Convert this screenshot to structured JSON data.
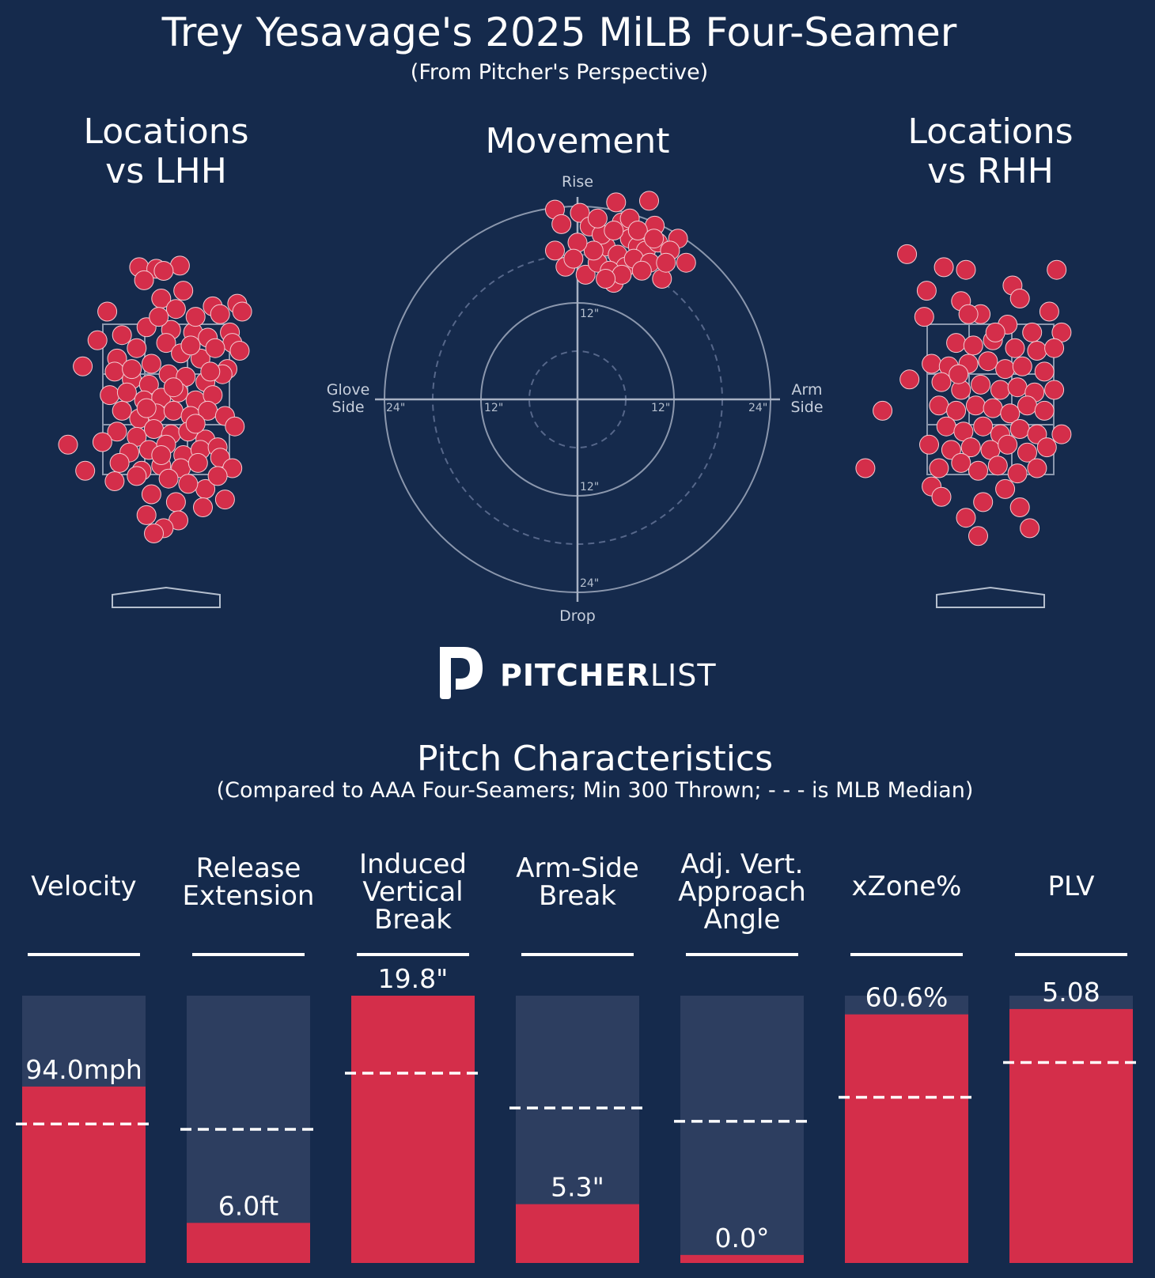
{
  "header": {
    "title": "Trey Yesavage's 2025 MiLB Four-Seamer",
    "subtitle": "(From Pitcher's Perspective)"
  },
  "panels": {
    "lhh_title": [
      "Locations",
      "vs LHH"
    ],
    "movement_title": "Movement",
    "rhh_title": [
      "Locations",
      "vs RHH"
    ]
  },
  "movement_axes": {
    "top": "Rise",
    "bottom": "Drop",
    "left": [
      "Glove",
      "Side"
    ],
    "right": [
      "Arm",
      "Side"
    ],
    "ticks": [
      "12\"",
      "24\""
    ]
  },
  "brand": {
    "bold": "PITCHER",
    "light": "LIST"
  },
  "characteristics": {
    "title": "Pitch Characteristics",
    "subtitle": "(Compared to AAA Four-Seamers; Min 300 Thrown; - - - is MLB Median)"
  },
  "colors": {
    "background": "#152a4c",
    "pitch_fill": "#d42e4a",
    "bar_track": "#2d3e60",
    "bar_fill": "#d42e4a",
    "median_line": "#ffffff"
  },
  "chart_data": [
    {
      "type": "scatter",
      "name": "Locations vs LHH",
      "x_range_ft": [
        -2.5,
        2.5
      ],
      "y_range_ft": [
        -0.5,
        5.5
      ],
      "points": [
        [
          -0.55,
          4.95
        ],
        [
          -0.2,
          4.92
        ],
        [
          0.28,
          4.98
        ],
        [
          -0.45,
          4.7
        ],
        [
          -0.05,
          4.88
        ],
        [
          0.35,
          4.5
        ],
        [
          -1.2,
          4.1
        ],
        [
          0.95,
          4.2
        ],
        [
          1.45,
          4.25
        ],
        [
          1.1,
          4.05
        ],
        [
          1.55,
          4.1
        ],
        [
          -1.4,
          3.55
        ],
        [
          -0.4,
          3.8
        ],
        [
          0.1,
          3.75
        ],
        [
          0.55,
          3.7
        ],
        [
          -0.9,
          3.65
        ],
        [
          0.85,
          3.6
        ],
        [
          1.3,
          3.7
        ],
        [
          -0.1,
          4.35
        ],
        [
          0.2,
          4.15
        ],
        [
          0.6,
          4.0
        ],
        [
          1.35,
          3.5
        ],
        [
          1.5,
          3.35
        ],
        [
          -1.0,
          3.2
        ],
        [
          -0.6,
          3.4
        ],
        [
          -0.3,
          3.1
        ],
        [
          0.0,
          3.5
        ],
        [
          0.3,
          3.3
        ],
        [
          0.7,
          3.2
        ],
        [
          1.0,
          3.4
        ],
        [
          1.25,
          3.0
        ],
        [
          -1.05,
          2.95
        ],
        [
          -0.7,
          2.8
        ],
        [
          -0.35,
          2.7
        ],
        [
          0.05,
          2.9
        ],
        [
          0.4,
          2.85
        ],
        [
          0.8,
          2.75
        ],
        [
          1.15,
          2.9
        ],
        [
          -1.15,
          2.5
        ],
        [
          -0.8,
          2.55
        ],
        [
          -0.45,
          2.4
        ],
        [
          -0.1,
          2.45
        ],
        [
          0.25,
          2.55
        ],
        [
          0.6,
          2.4
        ],
        [
          0.95,
          2.5
        ],
        [
          -0.9,
          2.2
        ],
        [
          -0.55,
          2.05
        ],
        [
          -0.2,
          2.15
        ],
        [
          0.15,
          2.2
        ],
        [
          0.5,
          2.1
        ],
        [
          0.85,
          2.2
        ],
        [
          1.2,
          2.1
        ],
        [
          -1.0,
          1.8
        ],
        [
          -0.6,
          1.7
        ],
        [
          -0.25,
          1.85
        ],
        [
          0.1,
          1.75
        ],
        [
          0.45,
          1.8
        ],
        [
          0.8,
          1.65
        ],
        [
          1.4,
          1.9
        ],
        [
          -1.3,
          1.6
        ],
        [
          -0.75,
          1.4
        ],
        [
          -0.35,
          1.45
        ],
        [
          0.0,
          1.55
        ],
        [
          0.35,
          1.35
        ],
        [
          0.7,
          1.45
        ],
        [
          1.05,
          1.5
        ],
        [
          -1.65,
          1.05
        ],
        [
          -0.95,
          1.2
        ],
        [
          -0.5,
          1.05
        ],
        [
          -0.1,
          1.15
        ],
        [
          0.3,
          1.1
        ],
        [
          0.65,
          1.2
        ],
        [
          1.1,
          1.3
        ],
        [
          1.35,
          1.1
        ],
        [
          -1.05,
          0.85
        ],
        [
          -0.6,
          0.95
        ],
        [
          0.05,
          0.9
        ],
        [
          0.8,
          0.7
        ],
        [
          1.2,
          0.5
        ],
        [
          -0.3,
          0.6
        ],
        [
          0.2,
          0.45
        ],
        [
          -0.4,
          0.2
        ],
        [
          0.25,
          0.1
        ],
        [
          -0.05,
          -0.05
        ],
        [
          -0.25,
          -0.15
        ],
        [
          0.75,
          0.35
        ],
        [
          1.05,
          0.95
        ],
        [
          -2.0,
          1.55
        ],
        [
          -1.7,
          3.05
        ],
        [
          -0.15,
          4.0
        ],
        [
          0.5,
          3.45
        ],
        [
          0.9,
          2.95
        ],
        [
          -0.7,
          3.0
        ],
        [
          0.15,
          2.65
        ],
        [
          -0.4,
          2.25
        ],
        [
          0.6,
          1.95
        ],
        [
          -0.1,
          1.35
        ],
        [
          0.45,
          0.8
        ]
      ]
    },
    {
      "type": "scatter",
      "name": "Movement",
      "x_range_in": [
        -24,
        24
      ],
      "y_range_in": [
        -24,
        24
      ],
      "ticks_in": [
        12,
        24
      ],
      "points": [
        [
          -2.8,
          23.6
        ],
        [
          0.3,
          23.2
        ],
        [
          4.8,
          24.5
        ],
        [
          8.9,
          24.7
        ],
        [
          -2.0,
          21.8
        ],
        [
          1.5,
          21.5
        ],
        [
          5.5,
          22.0
        ],
        [
          9.6,
          21.6
        ],
        [
          12.5,
          20.0
        ],
        [
          13.5,
          17.0
        ],
        [
          -2.8,
          18.5
        ],
        [
          -1.5,
          16.5
        ],
        [
          1.0,
          15.5
        ],
        [
          4.5,
          14.5
        ],
        [
          10.5,
          15.0
        ],
        [
          3.5,
          19.0
        ],
        [
          5.0,
          18.0
        ],
        [
          6.5,
          20.0
        ],
        [
          7.5,
          19.0
        ],
        [
          8.5,
          18.5
        ],
        [
          6.0,
          16.5
        ],
        [
          7.0,
          17.5
        ],
        [
          9.0,
          17.0
        ],
        [
          10.0,
          19.5
        ],
        [
          11.5,
          18.5
        ],
        [
          2.5,
          17.0
        ],
        [
          3.0,
          20.5
        ],
        [
          4.0,
          16.0
        ],
        [
          5.5,
          15.5
        ],
        [
          8.0,
          16.0
        ],
        [
          6.5,
          22.5
        ],
        [
          2.0,
          18.5
        ],
        [
          0.0,
          19.5
        ],
        [
          7.5,
          21.0
        ],
        [
          9.5,
          20.0
        ],
        [
          -0.5,
          17.5
        ],
        [
          4.5,
          21.0
        ],
        [
          2.5,
          22.5
        ],
        [
          11.0,
          17.0
        ],
        [
          3.5,
          15.0
        ]
      ]
    },
    {
      "type": "scatter",
      "name": "Locations vs RHH",
      "x_range_ft": [
        -2.5,
        2.5
      ],
      "y_range_ft": [
        -0.5,
        5.5
      ],
      "points": [
        [
          -1.7,
          5.2
        ],
        [
          -0.95,
          4.95
        ],
        [
          -0.5,
          4.9
        ],
        [
          1.35,
          4.9
        ],
        [
          0.45,
          4.6
        ],
        [
          -1.3,
          4.5
        ],
        [
          -0.6,
          4.3
        ],
        [
          0.6,
          4.35
        ],
        [
          1.2,
          4.1
        ],
        [
          -1.35,
          4.0
        ],
        [
          -0.2,
          4.05
        ],
        [
          0.35,
          3.85
        ],
        [
          0.85,
          3.7
        ],
        [
          1.45,
          3.7
        ],
        [
          -0.7,
          3.5
        ],
        [
          -0.35,
          3.45
        ],
        [
          0.05,
          3.55
        ],
        [
          0.5,
          3.4
        ],
        [
          0.95,
          3.35
        ],
        [
          1.3,
          3.4
        ],
        [
          -1.2,
          3.1
        ],
        [
          -0.85,
          3.05
        ],
        [
          -0.45,
          3.1
        ],
        [
          -0.05,
          3.15
        ],
        [
          0.3,
          3.0
        ],
        [
          0.65,
          3.05
        ],
        [
          1.1,
          2.95
        ],
        [
          -1.65,
          2.8
        ],
        [
          -1.0,
          2.75
        ],
        [
          -0.6,
          2.6
        ],
        [
          -0.2,
          2.7
        ],
        [
          0.2,
          2.6
        ],
        [
          0.55,
          2.65
        ],
        [
          0.9,
          2.55
        ],
        [
          1.3,
          2.6
        ],
        [
          -1.05,
          2.3
        ],
        [
          -0.7,
          2.2
        ],
        [
          -0.3,
          2.3
        ],
        [
          0.05,
          2.25
        ],
        [
          0.4,
          2.15
        ],
        [
          0.75,
          2.3
        ],
        [
          1.1,
          2.2
        ],
        [
          -2.2,
          2.2
        ],
        [
          -0.9,
          1.9
        ],
        [
          -0.55,
          1.8
        ],
        [
          -0.15,
          1.9
        ],
        [
          0.2,
          1.75
        ],
        [
          0.6,
          1.85
        ],
        [
          0.95,
          1.75
        ],
        [
          -1.25,
          1.55
        ],
        [
          -0.8,
          1.45
        ],
        [
          -0.4,
          1.5
        ],
        [
          0.0,
          1.45
        ],
        [
          0.35,
          1.55
        ],
        [
          0.75,
          1.4
        ],
        [
          1.15,
          1.5
        ],
        [
          -1.05,
          1.1
        ],
        [
          -0.6,
          1.2
        ],
        [
          -0.25,
          1.05
        ],
        [
          0.15,
          1.15
        ],
        [
          0.55,
          1.0
        ],
        [
          0.95,
          1.1
        ],
        [
          -1.2,
          0.75
        ],
        [
          -0.15,
          0.45
        ],
        [
          0.6,
          0.35
        ],
        [
          0.8,
          -0.05
        ],
        [
          -0.5,
          0.15
        ],
        [
          -0.25,
          -0.2
        ],
        [
          1.45,
          1.75
        ],
        [
          -2.55,
          1.1
        ],
        [
          -1.0,
          0.55
        ],
        [
          0.3,
          0.7
        ],
        [
          -0.65,
          2.9
        ],
        [
          0.1,
          3.7
        ],
        [
          -0.45,
          4.05
        ]
      ]
    },
    {
      "type": "bar",
      "name": "Pitch Characteristics",
      "categories": [
        [
          "Velocity"
        ],
        [
          "Release",
          "Extension"
        ],
        [
          "Induced",
          "Vertical",
          "Break"
        ],
        [
          "Arm-Side",
          "Break"
        ],
        [
          "Adj. Vert.",
          "Approach",
          "Angle"
        ],
        [
          "xZone%"
        ],
        [
          "PLV"
        ]
      ],
      "value_labels": [
        "94.0mph",
        "6.0ft",
        "19.8\"",
        "5.3\"",
        "0.0°",
        "60.6%",
        "5.08"
      ],
      "percentile": [
        66,
        15,
        100,
        22,
        3,
        93,
        95
      ],
      "median_percentile": [
        52,
        50,
        71,
        58,
        53,
        62,
        75
      ],
      "ylim": [
        0,
        100
      ]
    }
  ]
}
